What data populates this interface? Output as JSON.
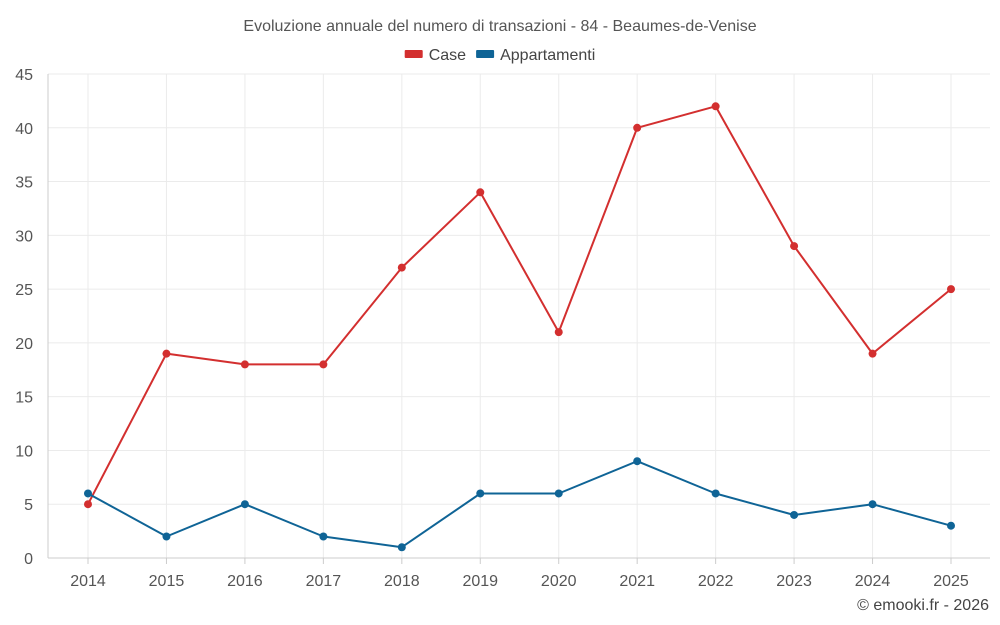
{
  "chart_data": {
    "type": "line",
    "title": "Evoluzione annuale del numero di transazioni - 84 - Beaumes-de-Venise",
    "x": [
      "2014",
      "2015",
      "2016",
      "2017",
      "2018",
      "2019",
      "2020",
      "2021",
      "2022",
      "2023",
      "2024",
      "2025"
    ],
    "series": [
      {
        "name": "Case",
        "color": "#d32f2f",
        "values": [
          5,
          19,
          18,
          18,
          27,
          34,
          21,
          40,
          42,
          29,
          19,
          25
        ]
      },
      {
        "name": "Appartamenti",
        "color": "#0f6496",
        "values": [
          6,
          2,
          5,
          2,
          1,
          6,
          6,
          9,
          6,
          4,
          5,
          3
        ]
      }
    ],
    "ylim": [
      0,
      45
    ],
    "yticks": [
      "0",
      "5",
      "10",
      "15",
      "20",
      "25",
      "30",
      "35",
      "40",
      "45"
    ],
    "grid": true,
    "legend": "top-center",
    "xlabel": "",
    "ylabel": ""
  },
  "credit": "© emooki.fr - 2026"
}
